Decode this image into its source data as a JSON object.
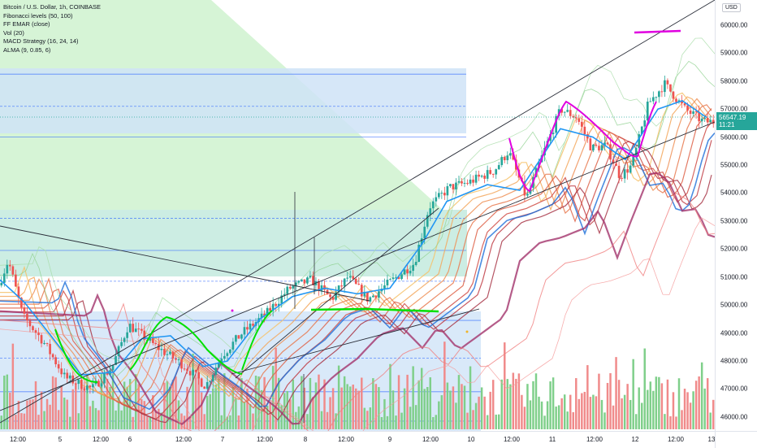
{
  "legend": {
    "symbol": "Bitcoin / U.S. Dollar, 1h, COINBASE",
    "indicators": [
      "Fibonacci levels (50, 100)",
      "FF EMAR (close)",
      "Vol (20)",
      "MACD Strategy (16, 24, 14)",
      "ALMA (9, 0.85, 6)"
    ]
  },
  "axis": {
    "currency": "USD",
    "y_ticks": [
      "60000.00",
      "59000.00",
      "58000.00",
      "57000.00",
      "56000.00",
      "55000.00",
      "54000.00",
      "53000.00",
      "52000.00",
      "51000.00",
      "50000.00",
      "49000.00",
      "48000.00",
      "47000.00",
      "46000.00"
    ],
    "x_ticks": [
      "12:00",
      "5",
      "12:00",
      "6",
      "12:00",
      "7",
      "12:00",
      "8",
      "12:00",
      "9",
      "12:00",
      "10",
      "12:00",
      "11",
      "12:00",
      "12",
      "12:00",
      "13"
    ]
  },
  "last_price": {
    "price": "56547.19",
    "countdown": "11:21"
  },
  "colors": {
    "up": "#26a69a",
    "down": "#ef5350",
    "vol_up": "#7fcf8a",
    "vol_down": "#f08a8a",
    "alma": "#2196f3",
    "fib_fill": "#cfe3f7",
    "fib_line": "#2962ff",
    "green_zone": "#c8f0c8",
    "drawing_green": "#00e000",
    "drawing_magenta": "#e000e0"
  },
  "chart_data": {
    "type": "candlestick",
    "title": "Bitcoin / U.S. Dollar, 1h, COINBASE",
    "ylim": [
      45500,
      60900
    ],
    "x_range_days": [
      "Mar 4",
      "Mar 13"
    ],
    "legend_position": "top-left",
    "grid": false,
    "price_path_keypoints": [
      {
        "t": 0,
        "price": 50700
      },
      {
        "t": 12,
        "price": 51600
      },
      {
        "t": 30,
        "price": 49600
      },
      {
        "t": 55,
        "price": 48700
      },
      {
        "t": 82,
        "price": 47400
      },
      {
        "t": 115,
        "price": 47000
      },
      {
        "t": 140,
        "price": 47800
      },
      {
        "t": 160,
        "price": 49300
      },
      {
        "t": 190,
        "price": 48600
      },
      {
        "t": 230,
        "price": 47800
      },
      {
        "t": 255,
        "price": 47100
      },
      {
        "t": 275,
        "price": 48200
      },
      {
        "t": 300,
        "price": 49000
      },
      {
        "t": 330,
        "price": 49700
      },
      {
        "t": 358,
        "price": 50600
      },
      {
        "t": 385,
        "price": 50900
      },
      {
        "t": 410,
        "price": 50200
      },
      {
        "t": 430,
        "price": 51000
      },
      {
        "t": 455,
        "price": 50200
      },
      {
        "t": 490,
        "price": 51000
      },
      {
        "t": 512,
        "price": 51500
      },
      {
        "t": 530,
        "price": 53500
      },
      {
        "t": 555,
        "price": 54200
      },
      {
        "t": 580,
        "price": 54400
      },
      {
        "t": 610,
        "price": 54800
      },
      {
        "t": 628,
        "price": 55500
      },
      {
        "t": 650,
        "price": 53800
      },
      {
        "t": 665,
        "price": 55000
      },
      {
        "t": 692,
        "price": 57000
      },
      {
        "t": 712,
        "price": 56700
      },
      {
        "t": 730,
        "price": 55600
      },
      {
        "t": 748,
        "price": 55700
      },
      {
        "t": 765,
        "price": 54600
      },
      {
        "t": 780,
        "price": 55000
      },
      {
        "t": 800,
        "price": 57200
      },
      {
        "t": 820,
        "price": 57900
      },
      {
        "t": 845,
        "price": 57000
      },
      {
        "t": 868,
        "price": 56547
      }
    ],
    "fibonacci_levels": [
      58250,
      57100,
      56000,
      53100,
      51950,
      50850,
      49450,
      48100,
      46900,
      45850
    ],
    "alma_keypoints": [
      {
        "t": 0,
        "price": 50900
      },
      {
        "t": 30,
        "price": 50100
      },
      {
        "t": 60,
        "price": 49000
      },
      {
        "t": 100,
        "price": 47500
      },
      {
        "t": 140,
        "price": 47600
      },
      {
        "t": 175,
        "price": 48800
      },
      {
        "t": 210,
        "price": 48900
      },
      {
        "t": 250,
        "price": 47800
      },
      {
        "t": 280,
        "price": 48000
      },
      {
        "t": 320,
        "price": 49500
      },
      {
        "t": 360,
        "price": 50300
      },
      {
        "t": 400,
        "price": 50600
      },
      {
        "t": 440,
        "price": 50400
      },
      {
        "t": 480,
        "price": 50600
      },
      {
        "t": 520,
        "price": 52200
      },
      {
        "t": 550,
        "price": 53700
      },
      {
        "t": 600,
        "price": 54300
      },
      {
        "t": 640,
        "price": 54100
      },
      {
        "t": 690,
        "price": 56300
      },
      {
        "t": 730,
        "price": 56000
      },
      {
        "t": 770,
        "price": 55200
      },
      {
        "t": 810,
        "price": 57000
      },
      {
        "t": 840,
        "price": 57300
      },
      {
        "t": 870,
        "price": 56700
      }
    ]
  }
}
